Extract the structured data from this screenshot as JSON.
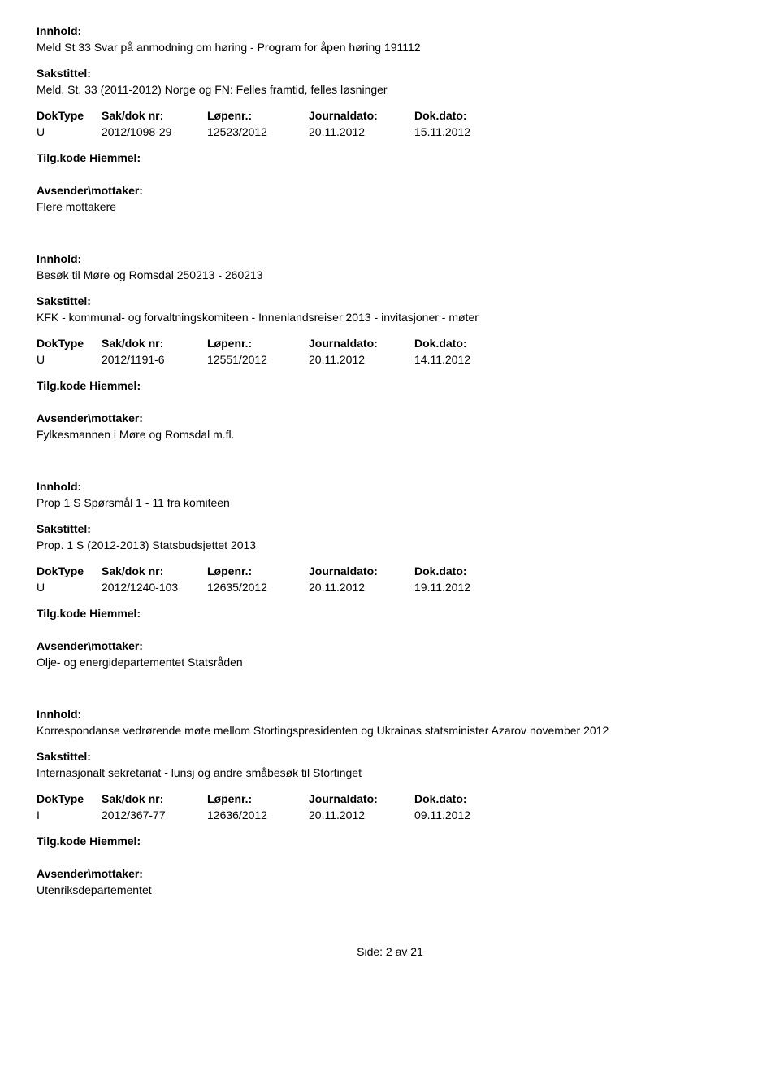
{
  "labels": {
    "innhold": "Innhold:",
    "sakstittel": "Sakstittel:",
    "doktype": "DokType",
    "saknr": "Sak/dok nr:",
    "lopenr": "Løpenr.:",
    "journaldato": "Journaldato:",
    "dokdato": "Dok.dato:",
    "tilgkode": "Tilg.kode",
    "hjemmel": "Hiemmel:",
    "avsender": "Avsender\\mottaker:"
  },
  "records": [
    {
      "innhold": "Meld St 33 Svar på anmodning om høring - Program for åpen høring 191112",
      "sakstittel": "Meld. St. 33 (2011-2012) Norge og FN: Felles framtid, felles løsninger",
      "doktype": "U",
      "saknr": "2012/1098-29",
      "lopenr": "12523/2012",
      "journaldato": "20.11.2012",
      "dokdato": "15.11.2012",
      "avsender": "Flere mottakere"
    },
    {
      "innhold": "Besøk til Møre og Romsdal 250213 - 260213",
      "sakstittel": "KFK - kommunal- og forvaltningskomiteen - Innenlandsreiser 2013 - invitasjoner - møter",
      "doktype": "U",
      "saknr": "2012/1191-6",
      "lopenr": "12551/2012",
      "journaldato": "20.11.2012",
      "dokdato": "14.11.2012",
      "avsender": "Fylkesmannen i Møre og Romsdal m.fl."
    },
    {
      "innhold": "Prop 1 S Spørsmål 1 - 11 fra komiteen",
      "sakstittel": "Prop. 1 S (2012-2013) Statsbudsjettet 2013",
      "doktype": "U",
      "saknr": "2012/1240-103",
      "lopenr": "12635/2012",
      "journaldato": "20.11.2012",
      "dokdato": "19.11.2012",
      "avsender": "Olje- og energidepartementet Statsråden"
    },
    {
      "innhold": "Korrespondanse vedrørende møte mellom Stortingspresidenten og Ukrainas statsminister Azarov november 2012",
      "sakstittel": "Internasjonalt sekretariat - lunsj og andre småbesøk til Stortinget",
      "doktype": "I",
      "saknr": "2012/367-77",
      "lopenr": "12636/2012",
      "journaldato": "20.11.2012",
      "dokdato": "09.11.2012",
      "avsender": "Utenriksdepartementet"
    }
  ],
  "footer": "Side: 2 av 21"
}
